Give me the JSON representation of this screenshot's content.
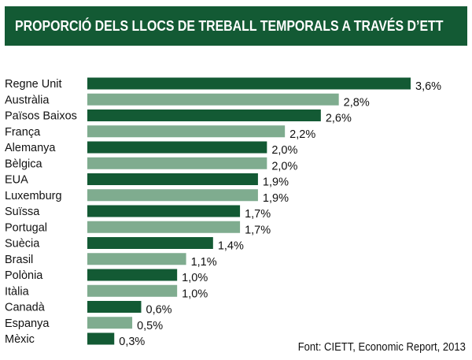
{
  "title": "PROPORCIÓ DELS LLOCS DE TREBALL TEMPORALS A TRAVÉS D’ETT",
  "source": "Font: CIETT, Economic Report, 2013",
  "colors": {
    "title_bg": "#135a34",
    "bar_dark": "#135a34",
    "bar_light": "#7fac8f"
  },
  "chart_data": {
    "type": "bar",
    "orientation": "horizontal",
    "title": "PROPORCIÓ DELS LLOCS DE TREBALL TEMPORALS A TRAVÉS D’ETT",
    "xlabel": "",
    "ylabel": "",
    "categories": [
      "Regne Unit",
      "Austràlia",
      "Països Baixos",
      "França",
      "Alemanya",
      "Bèlgica",
      "EUA",
      "Luxemburg",
      "Suïssa",
      "Portugal",
      "Suècia",
      "Brasil",
      "Polònia",
      "Itàlia",
      "Canadà",
      "Espanya",
      "Mèxic"
    ],
    "values": [
      3.6,
      2.8,
      2.6,
      2.2,
      2.0,
      2.0,
      1.9,
      1.9,
      1.7,
      1.7,
      1.4,
      1.1,
      1.0,
      1.0,
      0.6,
      0.5,
      0.3
    ],
    "value_labels": [
      "3,6%",
      "2,8%",
      "2,6%",
      "2,2%",
      "2,0%",
      "2,0%",
      "1,9%",
      "1,9%",
      "1,7%",
      "1,7%",
      "1,4%",
      "1,1%",
      "1,0%",
      "1,0%",
      "0,6%",
      "0,5%",
      "0,3%"
    ],
    "unit": "%",
    "xlim": [
      0,
      3.6
    ],
    "grid": false,
    "legend": "none"
  }
}
